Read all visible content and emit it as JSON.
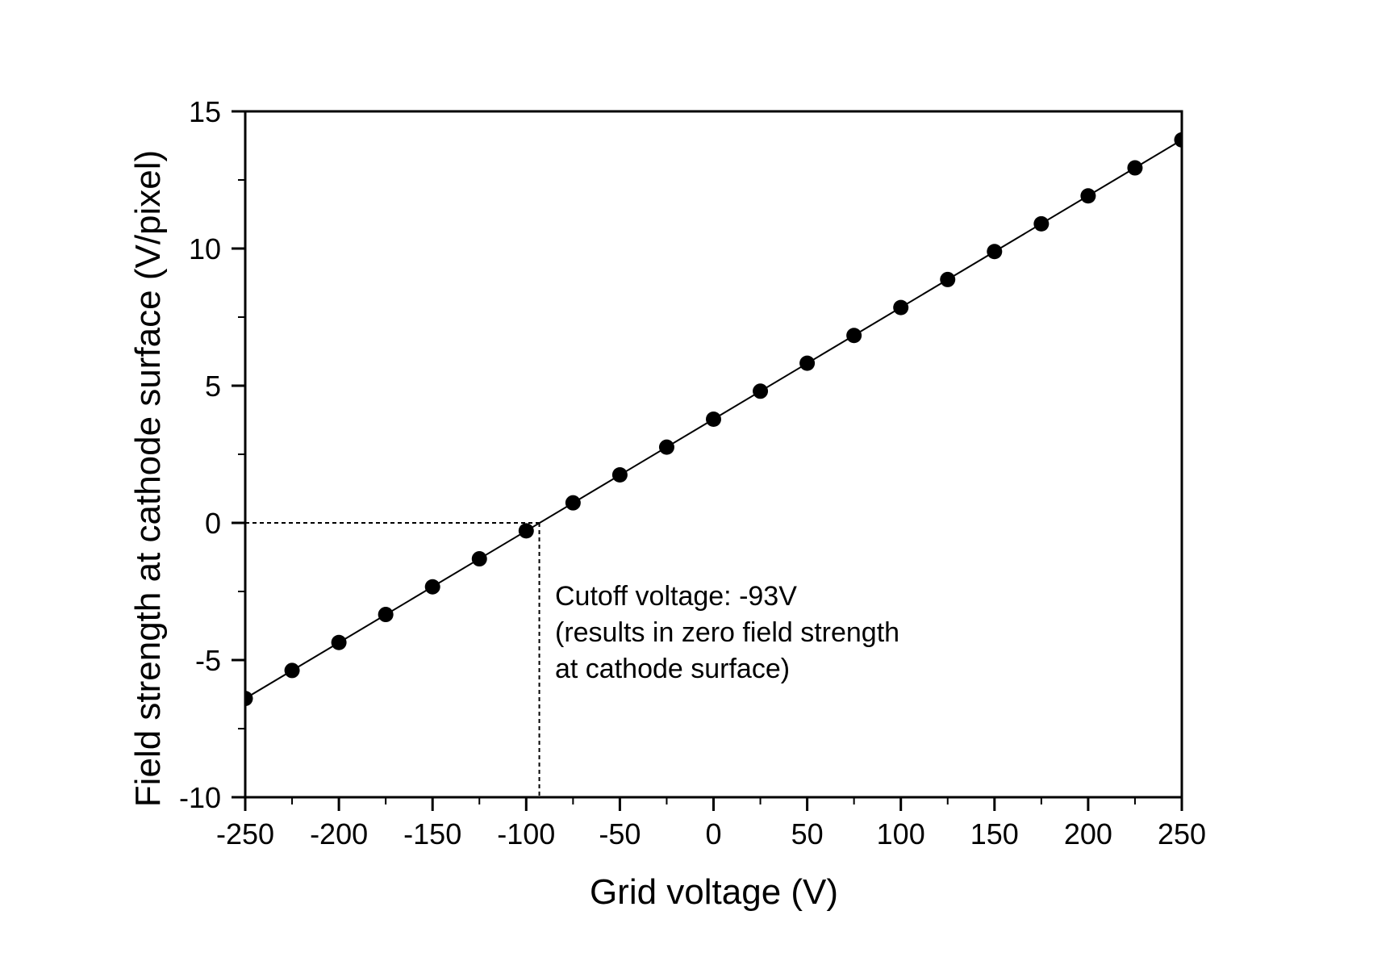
{
  "chart_data": {
    "type": "scatter",
    "title": "",
    "xlabel": "Grid voltage (V)",
    "ylabel": "Field strength at cathode surface (V/pixel)",
    "xlim": [
      -250,
      250
    ],
    "ylim": [
      -10,
      15
    ],
    "xticks": [
      -250,
      -200,
      -150,
      -100,
      -50,
      0,
      50,
      100,
      150,
      200,
      250
    ],
    "xtick_labels": [
      "-250",
      "-200",
      "-150",
      "-100",
      "-50",
      "0",
      "50",
      "100",
      "150",
      "200",
      "250"
    ],
    "x_minor_ticks": [
      -225,
      -175,
      -125,
      -75,
      -25,
      25,
      75,
      125,
      175,
      225
    ],
    "yticks": [
      -10,
      -5,
      0,
      5,
      10,
      15
    ],
    "ytick_labels": [
      "-10",
      "-5",
      "0",
      "5",
      "10",
      "15"
    ],
    "y_minor_ticks": [
      -7.5,
      -2.5,
      2.5,
      7.5,
      12.5
    ],
    "grid": false,
    "legend": null,
    "series": [
      {
        "name": "Field strength",
        "style": "filled circle markers with linear fit line",
        "color": "#000000",
        "x": [
          -250,
          -225,
          -200,
          -175,
          -150,
          -125,
          -100,
          -75,
          -50,
          -25,
          0,
          25,
          50,
          75,
          100,
          125,
          150,
          175,
          200,
          225,
          250
        ],
        "values": [
          -6.4,
          -5.38,
          -4.36,
          -3.34,
          -2.33,
          -1.31,
          -0.29,
          0.73,
          1.75,
          2.76,
          3.78,
          4.8,
          5.82,
          6.83,
          7.85,
          8.87,
          9.89,
          10.9,
          11.92,
          12.94,
          13.96
        ]
      }
    ],
    "fit_line": {
      "x": [
        -250,
        250
      ],
      "y": [
        -6.4,
        13.96
      ]
    },
    "reference_lines": [
      {
        "type": "horizontal-dashed",
        "y": 0,
        "x_from": -250,
        "x_to": -93
      },
      {
        "type": "vertical-dashed",
        "x": -93,
        "y_from": -10,
        "y_to": 0
      }
    ],
    "annotations": [
      {
        "lines": [
          "Cutoff voltage: -93V",
          "(results in zero field strength",
          "at cathode surface)"
        ],
        "anchor_x": -90,
        "anchor_y": -2.6
      }
    ]
  }
}
